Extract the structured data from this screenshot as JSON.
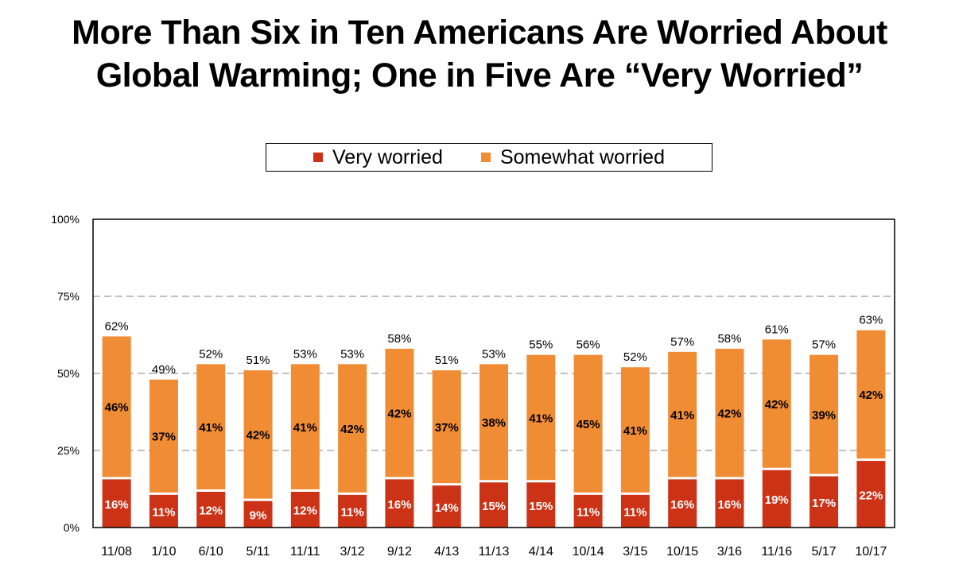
{
  "title_lines": [
    "More Than Six in Ten Americans Are Worried About",
    "Global Warming; One in Five Are “Very Worried”"
  ],
  "colors": {
    "very": "#cc3216",
    "somewhat": "#f08c34",
    "total_label": "#000000"
  },
  "chart_data": {
    "type": "bar",
    "stacked": true,
    "title": "More Than Six in Ten Americans Are Worried About Global Warming; One in Five Are “Very Worried”",
    "categories": [
      "11/08",
      "1/10",
      "6/10",
      "5/11",
      "11/11",
      "3/12",
      "9/12",
      "4/13",
      "11/13",
      "4/14",
      "10/14",
      "3/15",
      "10/15",
      "3/16",
      "11/16",
      "5/17",
      "10/17"
    ],
    "series": [
      {
        "name": "Very worried",
        "values": [
          16,
          11,
          12,
          9,
          12,
          11,
          16,
          14,
          15,
          15,
          11,
          11,
          16,
          16,
          19,
          17,
          22
        ]
      },
      {
        "name": "Somewhat worried",
        "values": [
          46,
          37,
          41,
          42,
          41,
          42,
          42,
          37,
          38,
          41,
          45,
          41,
          41,
          42,
          42,
          39,
          42
        ]
      }
    ],
    "totals": [
      62,
      49,
      52,
      51,
      53,
      53,
      58,
      51,
      53,
      55,
      56,
      52,
      57,
      58,
      61,
      57,
      63
    ],
    "ylim": [
      0,
      100
    ],
    "yticks": [
      "0%",
      "25%",
      "50%",
      "75%",
      "100%"
    ],
    "ytick_values": [
      0,
      25,
      50,
      75,
      100
    ],
    "grid": true,
    "legend": "top-center",
    "value_suffix": "%"
  }
}
